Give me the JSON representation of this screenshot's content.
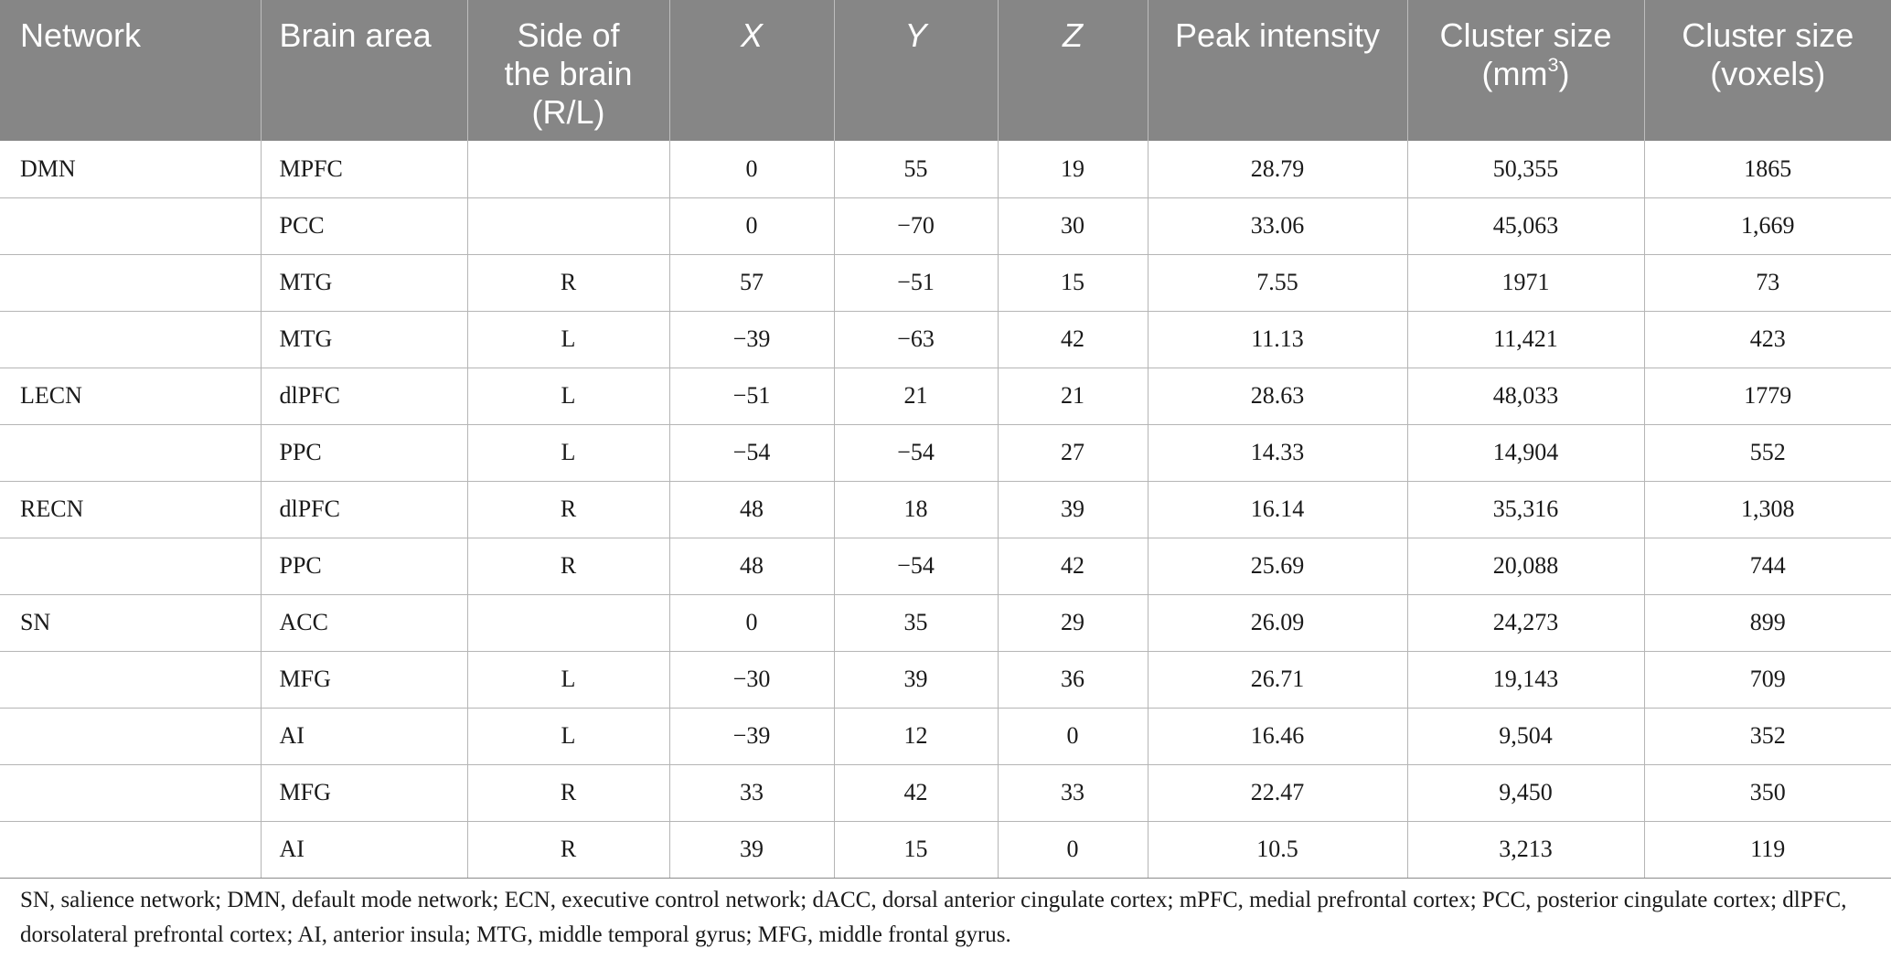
{
  "table": {
    "headers": {
      "network": "Network",
      "brain_area": "Brain area",
      "side_line1": "Side of",
      "side_line2": "the brain",
      "side_line3": "(R/L)",
      "x": "X",
      "y": "Y",
      "z": "Z",
      "peak": "Peak intensity",
      "cluster_mm_line1": "Cluster size",
      "cluster_mm_line2_pre": "(mm",
      "cluster_mm_sup": "3",
      "cluster_mm_line2_post": ")",
      "cluster_vox_line1": "Cluster size",
      "cluster_vox_line2": "(voxels)"
    },
    "rows": [
      {
        "network": "DMN",
        "area": "MPFC",
        "side": "",
        "x": "0",
        "y": "55",
        "z": "19",
        "peak": "28.79",
        "mm3": "50,355",
        "voxels": "1865"
      },
      {
        "network": "",
        "area": "PCC",
        "side": "",
        "x": "0",
        "y": "−70",
        "z": "30",
        "peak": "33.06",
        "mm3": "45,063",
        "voxels": "1,669"
      },
      {
        "network": "",
        "area": "MTG",
        "side": "R",
        "x": "57",
        "y": "−51",
        "z": "15",
        "peak": "7.55",
        "mm3": "1971",
        "voxels": "73"
      },
      {
        "network": "",
        "area": "MTG",
        "side": "L",
        "x": "−39",
        "y": "−63",
        "z": "42",
        "peak": "11.13",
        "mm3": "11,421",
        "voxels": "423"
      },
      {
        "network": "LECN",
        "area": "dlPFC",
        "side": "L",
        "x": "−51",
        "y": "21",
        "z": "21",
        "peak": "28.63",
        "mm3": "48,033",
        "voxels": "1779"
      },
      {
        "network": "",
        "area": "PPC",
        "side": "L",
        "x": "−54",
        "y": "−54",
        "z": "27",
        "peak": "14.33",
        "mm3": "14,904",
        "voxels": "552"
      },
      {
        "network": "RECN",
        "area": "dlPFC",
        "side": "R",
        "x": "48",
        "y": "18",
        "z": "39",
        "peak": "16.14",
        "mm3": "35,316",
        "voxels": "1,308"
      },
      {
        "network": "",
        "area": "PPC",
        "side": "R",
        "x": "48",
        "y": "−54",
        "z": "42",
        "peak": "25.69",
        "mm3": "20,088",
        "voxels": "744"
      },
      {
        "network": "SN",
        "area": "ACC",
        "side": "",
        "x": "0",
        "y": "35",
        "z": "29",
        "peak": "26.09",
        "mm3": "24,273",
        "voxels": "899"
      },
      {
        "network": "",
        "area": "MFG",
        "side": "L",
        "x": "−30",
        "y": "39",
        "z": "36",
        "peak": "26.71",
        "mm3": "19,143",
        "voxels": "709"
      },
      {
        "network": "",
        "area": "AI",
        "side": "L",
        "x": "−39",
        "y": "12",
        "z": "0",
        "peak": "16.46",
        "mm3": "9,504",
        "voxels": "352"
      },
      {
        "network": "",
        "area": "MFG",
        "side": "R",
        "x": "33",
        "y": "42",
        "z": "33",
        "peak": "22.47",
        "mm3": "9,450",
        "voxels": "350"
      },
      {
        "network": "",
        "area": "AI",
        "side": "R",
        "x": "39",
        "y": "15",
        "z": "0",
        "peak": "10.5",
        "mm3": "3,213",
        "voxels": "119"
      }
    ]
  },
  "footnote": "SN, salience network; DMN, default mode network; ECN, executive control network; dACC, dorsal anterior cingulate cortex; mPFC, medial prefrontal cortex; PCC, posterior cingulate cortex; dlPFC, dorsolateral prefrontal cortex; AI, anterior insula; MTG, middle temporal gyrus; MFG, middle frontal gyrus."
}
